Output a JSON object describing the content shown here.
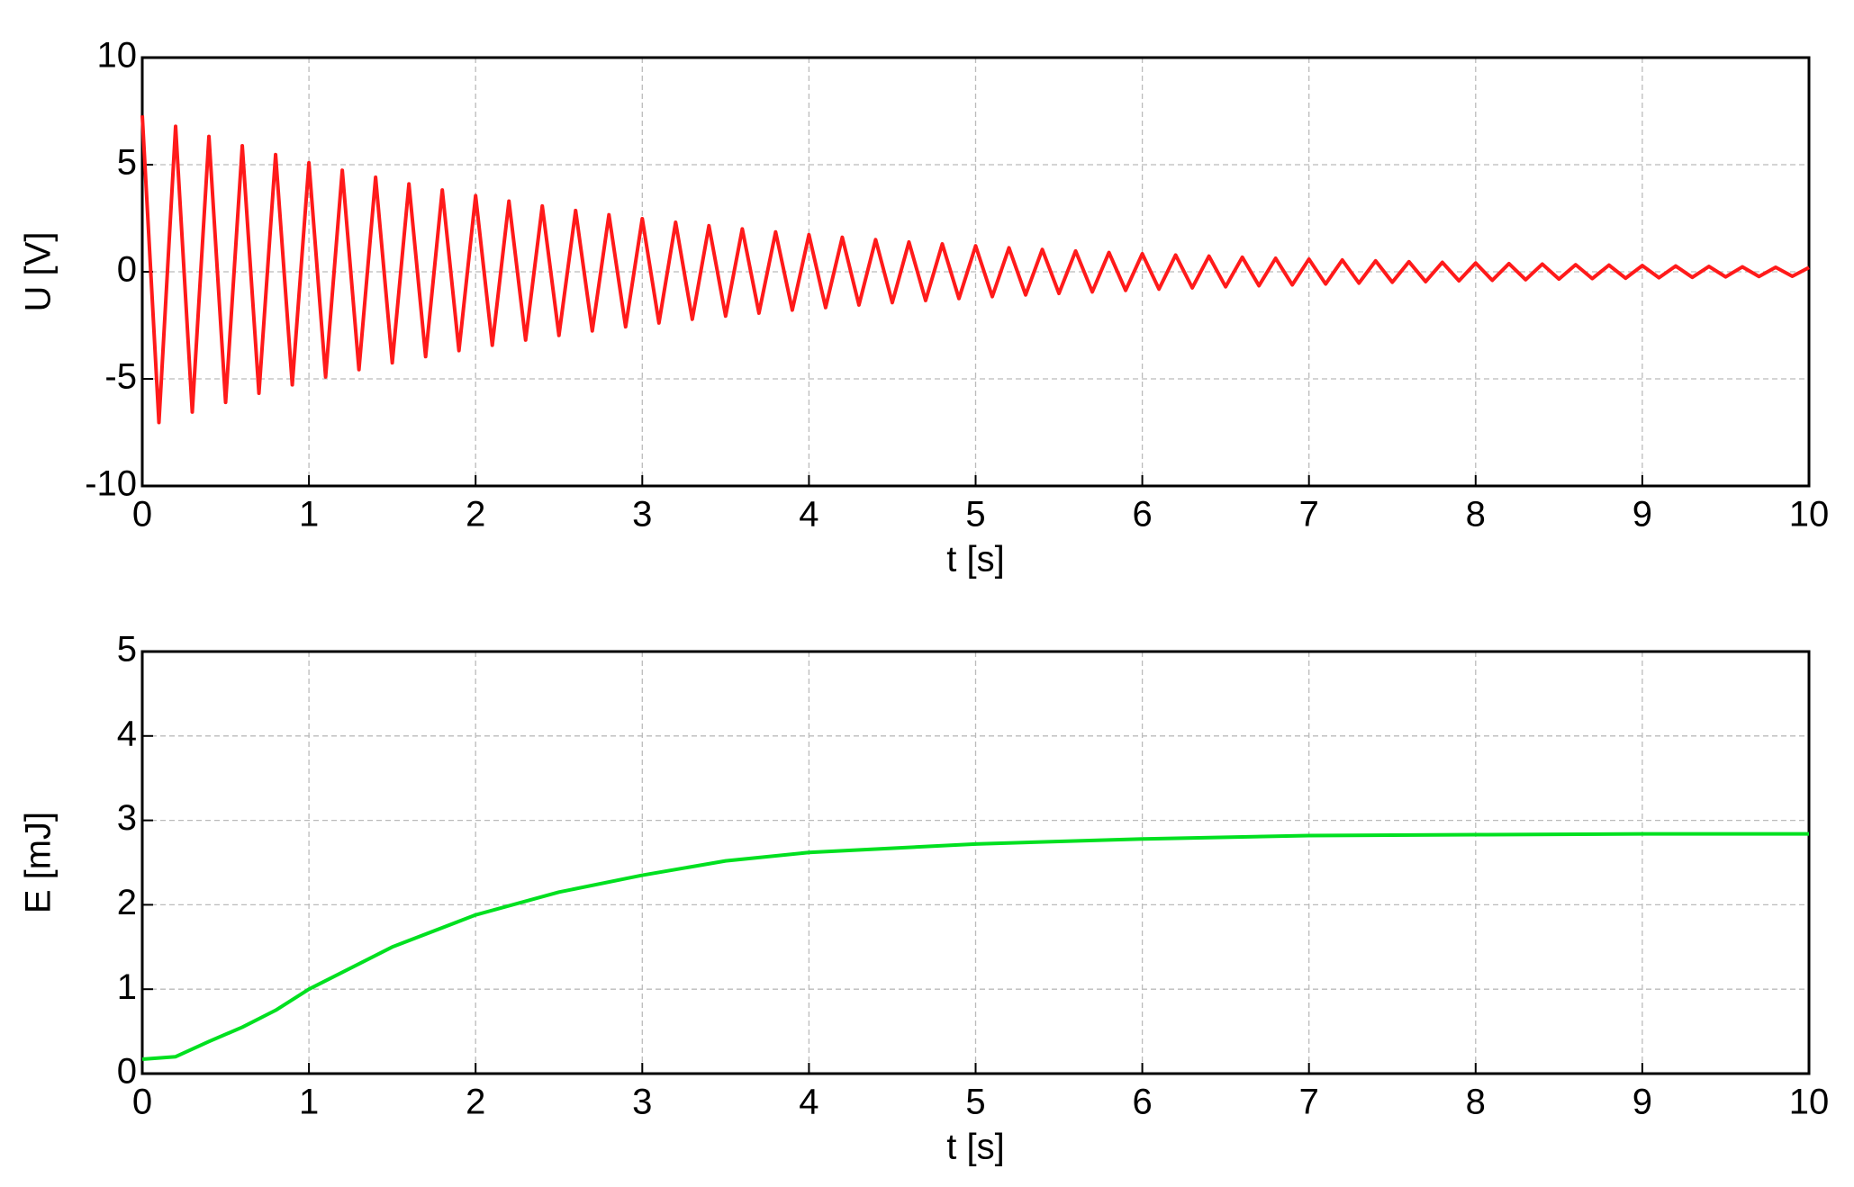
{
  "chart_data": [
    {
      "type": "line",
      "ylabel": "U [V]",
      "xlabel": "t [s]",
      "grid": true,
      "xlim": [
        0,
        10
      ],
      "xticks": [
        0,
        1,
        2,
        3,
        4,
        5,
        6,
        7,
        8,
        9,
        10
      ],
      "ylim": [
        -10,
        10
      ],
      "yticks": [
        -10,
        -5,
        0,
        5,
        10
      ],
      "x": [
        0,
        0.1,
        0.2,
        0.3,
        0.4,
        0.5,
        0.6,
        0.7,
        0.8,
        0.9,
        1,
        1.1,
        1.2,
        1.3,
        1.4,
        1.5,
        1.6,
        1.7,
        1.8,
        1.9,
        2,
        2.1,
        2.2,
        2.3,
        2.4,
        2.5,
        2.6,
        2.7,
        2.8,
        2.9,
        3,
        3.1,
        3.2,
        3.3,
        3.4,
        3.5,
        3.6,
        3.7,
        3.8,
        3.9,
        4,
        4.1,
        4.2,
        4.3,
        4.4,
        4.5,
        4.6,
        4.7,
        4.8,
        4.9,
        5,
        5.1,
        5.2,
        5.3,
        5.4,
        5.5,
        5.6,
        5.7,
        5.8,
        5.9,
        6,
        6.1,
        6.2,
        6.3,
        6.4,
        6.5,
        6.6,
        6.7,
        6.8,
        6.9,
        7,
        7.1,
        7.2,
        7.3,
        7.4,
        7.5,
        7.6,
        7.7,
        7.8,
        7.9,
        8,
        8.1,
        8.2,
        8.3,
        8.4,
        8.5,
        8.6,
        8.7,
        8.8,
        8.9,
        9,
        9.1,
        9.2,
        9.3,
        9.4,
        9.5,
        9.6,
        9.7,
        9.8,
        9.9,
        10
      ],
      "series": [
        {
          "color": "#ff1a1a",
          "values": [
            7.3,
            -7.04,
            6.79,
            -6.55,
            6.32,
            -6.1,
            5.88,
            -5.67,
            5.47,
            -5.28,
            5.09,
            -4.91,
            4.74,
            -4.57,
            4.41,
            -4.25,
            4.1,
            -3.96,
            3.82,
            -3.68,
            3.55,
            -3.43,
            3.3,
            -3.19,
            3.07,
            -2.97,
            2.86,
            -2.76,
            2.66,
            -2.57,
            2.48,
            -2.39,
            2.31,
            -2.22,
            2.15,
            -2.07,
            2.0,
            -1.93,
            1.86,
            -1.79,
            1.73,
            -1.67,
            1.61,
            -1.55,
            1.5,
            -1.44,
            1.39,
            -1.34,
            1.3,
            -1.25,
            1.21,
            -1.16,
            1.12,
            -1.08,
            1.04,
            -1.01,
            0.97,
            -0.94,
            0.9,
            -0.87,
            0.84,
            -0.81,
            0.78,
            -0.75,
            0.73,
            -0.7,
            0.68,
            -0.65,
            0.63,
            -0.61,
            0.59,
            -0.57,
            0.55,
            -0.53,
            0.51,
            -0.49,
            0.47,
            -0.46,
            0.44,
            -0.42,
            0.41,
            -0.4,
            0.38,
            -0.37,
            0.36,
            -0.34,
            0.33,
            -0.32,
            0.31,
            -0.3,
            0.29,
            -0.28,
            0.27,
            -0.26,
            0.25,
            -0.24,
            0.23,
            -0.22,
            0.21,
            -0.21,
            0.2
          ]
        }
      ]
    },
    {
      "type": "line",
      "ylabel": "E [mJ]",
      "xlabel": "t [s]",
      "grid": true,
      "xlim": [
        0,
        10
      ],
      "xticks": [
        0,
        1,
        2,
        3,
        4,
        5,
        6,
        7,
        8,
        9,
        10
      ],
      "ylim": [
        0,
        5
      ],
      "yticks": [
        0,
        1,
        2,
        3,
        4,
        5
      ],
      "x": [
        0,
        0.2,
        0.4,
        0.6,
        0.8,
        1,
        1.5,
        2,
        2.5,
        3,
        3.5,
        4,
        5,
        6,
        7,
        8,
        9,
        10
      ],
      "series": [
        {
          "color": "#00e020",
          "values": [
            0.17,
            0.2,
            0.38,
            0.55,
            0.75,
            1.0,
            1.5,
            1.88,
            2.15,
            2.35,
            2.52,
            2.62,
            2.72,
            2.78,
            2.82,
            2.83,
            2.84,
            2.84
          ]
        }
      ]
    }
  ]
}
